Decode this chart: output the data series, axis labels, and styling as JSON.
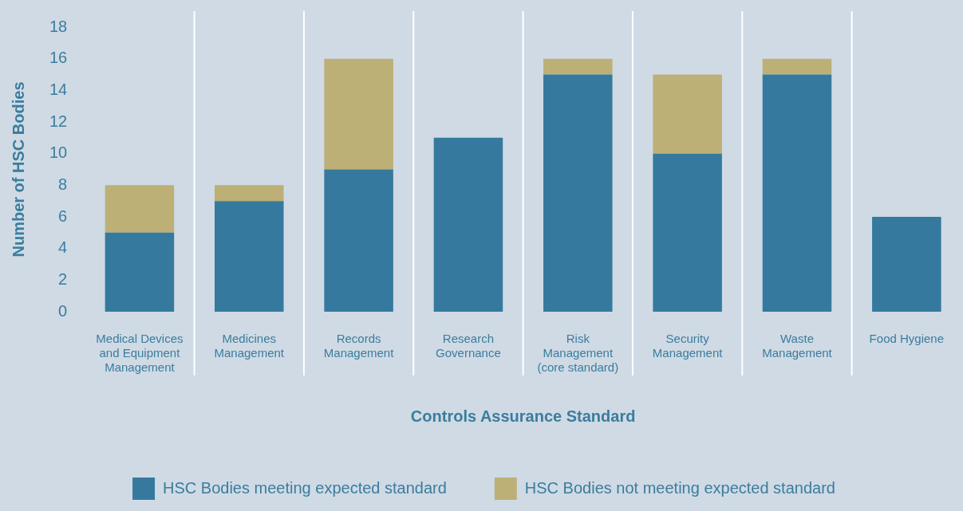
{
  "chart_data": {
    "type": "bar",
    "stacked": true,
    "xlabel": "Controls Assurance Standard",
    "ylabel": "Number of HSC Bodies",
    "categories": [
      "Medical Devices and Equipment Management",
      "Medicines Management",
      "Records Management",
      "Research Governance",
      "Risk Management (core standard)",
      "Security Management",
      "Waste Management",
      "Food Hygiene"
    ],
    "series": [
      {
        "name": "HSC Bodies meeting expected standard",
        "color": "#357a9e",
        "values": [
          5,
          7,
          9,
          11,
          15,
          10,
          15,
          6
        ]
      },
      {
        "name": "HSC Bodies not meeting expected standard",
        "color": "#bcb077",
        "values": [
          3,
          1,
          7,
          0,
          1,
          5,
          1,
          0
        ]
      }
    ],
    "ylim": [
      0,
      18
    ],
    "yticks": [
      0,
      2,
      4,
      6,
      8,
      10,
      12,
      14,
      16,
      18
    ],
    "grid": "x",
    "legend": "bottom"
  }
}
